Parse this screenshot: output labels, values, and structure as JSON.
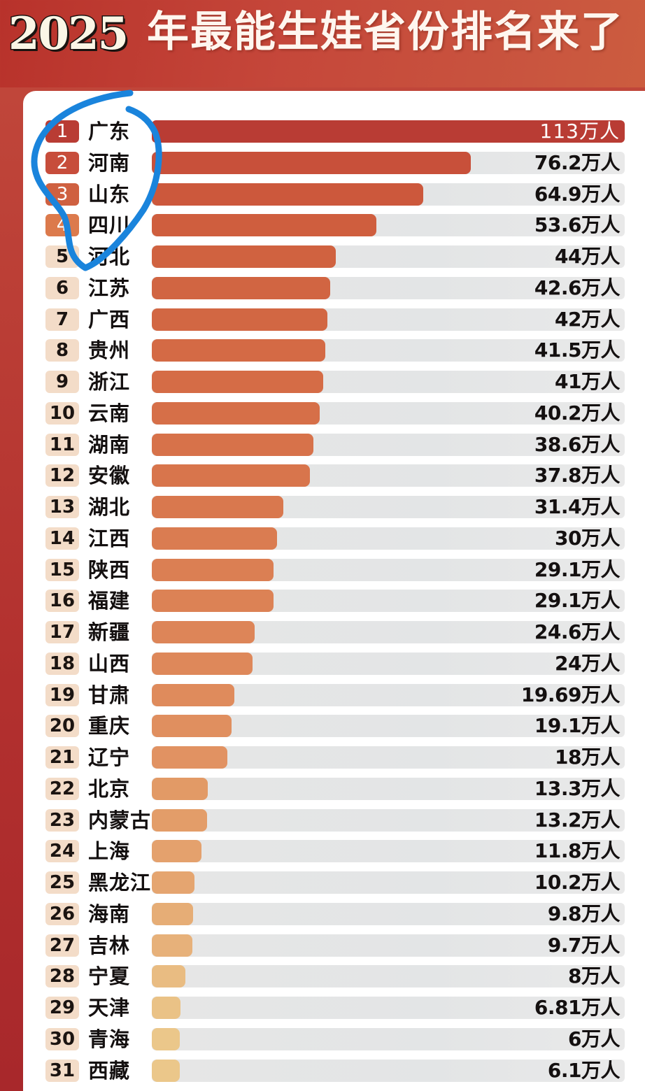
{
  "header": {
    "year": "2025",
    "title": "年最能生娃省份排名来了"
  },
  "unit_suffix": "万人",
  "colors": {
    "background_red": "#b8322b",
    "annotation_blue": "#1a84dc",
    "track_gray": "#e5e5e5",
    "text_dark": "#141010"
  },
  "rows": [
    {
      "rank": "1",
      "name": "广东",
      "value_label": "113万人",
      "value": 113,
      "bar_color": "#b93c34",
      "badge_color": "#b93c34"
    },
    {
      "rank": "2",
      "name": "河南",
      "value_label": "76.2万人",
      "value": 76.2,
      "bar_color": "#c8503a",
      "badge_color": "#c74d3b"
    },
    {
      "rank": "3",
      "name": "山东",
      "value_label": "64.9万人",
      "value": 64.9,
      "bar_color": "#cc583c",
      "badge_color": "#cf6040"
    },
    {
      "rank": "4",
      "name": "四川",
      "value_label": "53.6万人",
      "value": 53.6,
      "bar_color": "#cf5e3e",
      "badge_color": "#dc7a4c"
    },
    {
      "rank": "5",
      "name": "河北",
      "value_label": "44万人",
      "value": 44,
      "bar_color": "#d06240",
      "badge_color": "#f3dcc8"
    },
    {
      "rank": "6",
      "name": "江苏",
      "value_label": "42.6万人",
      "value": 42.6,
      "bar_color": "#d16542",
      "badge_color": "#f3dcc8"
    },
    {
      "rank": "7",
      "name": "广西",
      "value_label": "42万人",
      "value": 42,
      "bar_color": "#d26743",
      "badge_color": "#f3dcc8"
    },
    {
      "rank": "8",
      "name": "贵州",
      "value_label": "41.5万人",
      "value": 41.5,
      "bar_color": "#d46a45",
      "badge_color": "#f3dcc8"
    },
    {
      "rank": "9",
      "name": "浙江",
      "value_label": "41万人",
      "value": 41,
      "bar_color": "#d56c46",
      "badge_color": "#f3dcc8"
    },
    {
      "rank": "10",
      "name": "云南",
      "value_label": "40.2万人",
      "value": 40.2,
      "bar_color": "#d66f48",
      "badge_color": "#f3dcc8"
    },
    {
      "rank": "11",
      "name": "湖南",
      "value_label": "38.6万人",
      "value": 38.6,
      "bar_color": "#d7724a",
      "badge_color": "#f3dcc8"
    },
    {
      "rank": "12",
      "name": "安徽",
      "value_label": "37.8万人",
      "value": 37.8,
      "bar_color": "#d8754c",
      "badge_color": "#f3dcc8"
    },
    {
      "rank": "13",
      "name": "湖北",
      "value_label": "31.4万人",
      "value": 31.4,
      "bar_color": "#d9784e",
      "badge_color": "#f3dcc8"
    },
    {
      "rank": "14",
      "name": "江西",
      "value_label": "30万人",
      "value": 30,
      "bar_color": "#da7c51",
      "badge_color": "#f3dcc8"
    },
    {
      "rank": "15",
      "name": "陕西",
      "value_label": "29.1万人",
      "value": 29.1,
      "bar_color": "#db7f53",
      "badge_color": "#f3dcc8"
    },
    {
      "rank": "16",
      "name": "福建",
      "value_label": "29.1万人",
      "value": 29.1,
      "bar_color": "#dc8255",
      "badge_color": "#f3dcc8"
    },
    {
      "rank": "17",
      "name": "新疆",
      "value_label": "24.6万人",
      "value": 24.6,
      "bar_color": "#dd8558",
      "badge_color": "#f3dcc8"
    },
    {
      "rank": "18",
      "name": "山西",
      "value_label": "24万人",
      "value": 24,
      "bar_color": "#de885a",
      "badge_color": "#f3dcc8"
    },
    {
      "rank": "19",
      "name": "甘肃",
      "value_label": "19.69万人",
      "value": 19.69,
      "bar_color": "#df8b5c",
      "badge_color": "#f3dcc8"
    },
    {
      "rank": "20",
      "name": "重庆",
      "value_label": "19.1万人",
      "value": 19.1,
      "bar_color": "#e08f5f",
      "badge_color": "#f3dcc8"
    },
    {
      "rank": "21",
      "name": "辽宁",
      "value_label": "18万人",
      "value": 18,
      "bar_color": "#e19262",
      "badge_color": "#f3dcc8"
    },
    {
      "rank": "22",
      "name": "北京",
      "value_label": "13.3万人",
      "value": 13.3,
      "bar_color": "#e29a66",
      "badge_color": "#f3dcc8"
    },
    {
      "rank": "23",
      "name": "内蒙古",
      "value_label": "13.2万人",
      "value": 13.2,
      "bar_color": "#e39d69",
      "badge_color": "#f3dcc8"
    },
    {
      "rank": "24",
      "name": "上海",
      "value_label": "11.8万人",
      "value": 11.8,
      "bar_color": "#e4a16d",
      "badge_color": "#f3dcc8"
    },
    {
      "rank": "25",
      "name": "黑龙江",
      "value_label": "10.2万人",
      "value": 10.2,
      "bar_color": "#e5a570",
      "badge_color": "#f3dcc8"
    },
    {
      "rank": "26",
      "name": "海南",
      "value_label": "9.8万人",
      "value": 9.8,
      "bar_color": "#e6ad76",
      "badge_color": "#f3dcc8"
    },
    {
      "rank": "27",
      "name": "吉林",
      "value_label": "9.7万人",
      "value": 9.7,
      "bar_color": "#e7b17a",
      "badge_color": "#f3dcc8"
    },
    {
      "rank": "28",
      "name": "宁夏",
      "value_label": "8万人",
      "value": 8,
      "bar_color": "#e9bc82",
      "badge_color": "#f3dcc8"
    },
    {
      "rank": "29",
      "name": "天津",
      "value_label": "6.81万人",
      "value": 6.81,
      "bar_color": "#eac286",
      "badge_color": "#f3dcc8"
    },
    {
      "rank": "30",
      "name": "青海",
      "value_label": "6万人",
      "value": 6,
      "bar_color": "#ebc78a",
      "badge_color": "#f3dcc8"
    },
    {
      "rank": "31",
      "name": "西藏",
      "value_label": "6.1万人",
      "value": 6.1,
      "bar_color": "#ebc78a",
      "badge_color": "#f3dcc8"
    }
  ],
  "chart_data": {
    "type": "bar",
    "orientation": "horizontal",
    "title": "2025年最能生娃省份排名来了",
    "xlabel": "",
    "ylabel": "",
    "unit": "万人",
    "categories": [
      "广东",
      "河南",
      "山东",
      "四川",
      "河北",
      "江苏",
      "广西",
      "贵州",
      "浙江",
      "云南",
      "湖南",
      "安徽",
      "湖北",
      "江西",
      "陕西",
      "福建",
      "新疆",
      "山西",
      "甘肃",
      "重庆",
      "辽宁",
      "北京",
      "内蒙古",
      "上海",
      "黑龙江",
      "海南",
      "吉林",
      "宁夏",
      "天津",
      "青海",
      "西藏"
    ],
    "values": [
      113,
      76.2,
      64.9,
      53.6,
      44,
      42.6,
      42,
      41.5,
      41,
      40.2,
      38.6,
      37.8,
      31.4,
      30,
      29.1,
      29.1,
      24.6,
      24,
      19.69,
      19.1,
      18,
      13.3,
      13.2,
      11.8,
      10.2,
      9.8,
      9.7,
      8,
      6.81,
      6,
      6.1
    ],
    "value_labels": [
      "113万人",
      "76.2万人",
      "64.9万人",
      "53.6万人",
      "44万人",
      "42.6万人",
      "42万人",
      "41.5万人",
      "41万人",
      "40.2万人",
      "38.6万人",
      "37.8万人",
      "31.4万人",
      "30万人",
      "29.1万人",
      "29.1万人",
      "24.6万人",
      "24万人",
      "19.69万人",
      "19.1万人",
      "18万人",
      "13.3万人",
      "13.2万人",
      "11.8万人",
      "10.2万人",
      "9.8万人",
      "9.7万人",
      "8万人",
      "6.81万人",
      "6万人",
      "6.1万人"
    ],
    "xlim": [
      0,
      113
    ],
    "grid": false,
    "legend": null,
    "annotations": [
      "hand-drawn blue circle around ranks 1–4 (广东, 河南, 山东, 四川)"
    ]
  }
}
